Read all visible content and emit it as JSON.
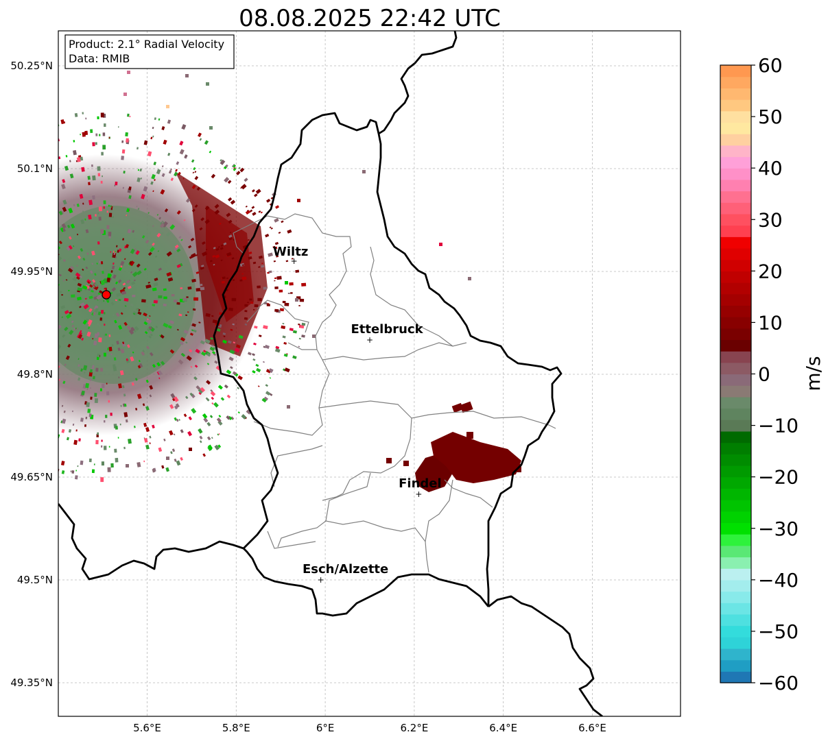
{
  "title": "08.08.2025 22:42 UTC",
  "info_box": {
    "product": "Product: 2.1° Radial Velocity",
    "data": "Data: RMIB"
  },
  "lat_ticks": [
    "50.25°N",
    "50.1°N",
    "49.95°N",
    "49.8°N",
    "49.65°N",
    "49.5°N",
    "49.35°N"
  ],
  "lon_ticks": [
    "5.6°E",
    "5.8°E",
    "6°E",
    "6.2°E",
    "6.4°E",
    "6.6°E"
  ],
  "colorbar": {
    "label": "m/s",
    "ticks": [
      "60",
      "50",
      "40",
      "30",
      "20",
      "10",
      "0",
      "−10",
      "−20",
      "−30",
      "−40",
      "−50",
      "−60"
    ],
    "range": [
      -60,
      60
    ]
  },
  "cities": [
    {
      "name": "Wiltz",
      "lon": 5.93,
      "lat": 49.965
    },
    {
      "name": "Ettelbruck",
      "lon": 6.1,
      "lat": 49.85
    },
    {
      "name": "Findel",
      "lon": 6.21,
      "lat": 49.625
    },
    {
      "name": "Esch/Alzette",
      "lon": 5.99,
      "lat": 49.5
    }
  ],
  "radar_site": {
    "lon": 5.505,
    "lat": 49.915
  }
}
